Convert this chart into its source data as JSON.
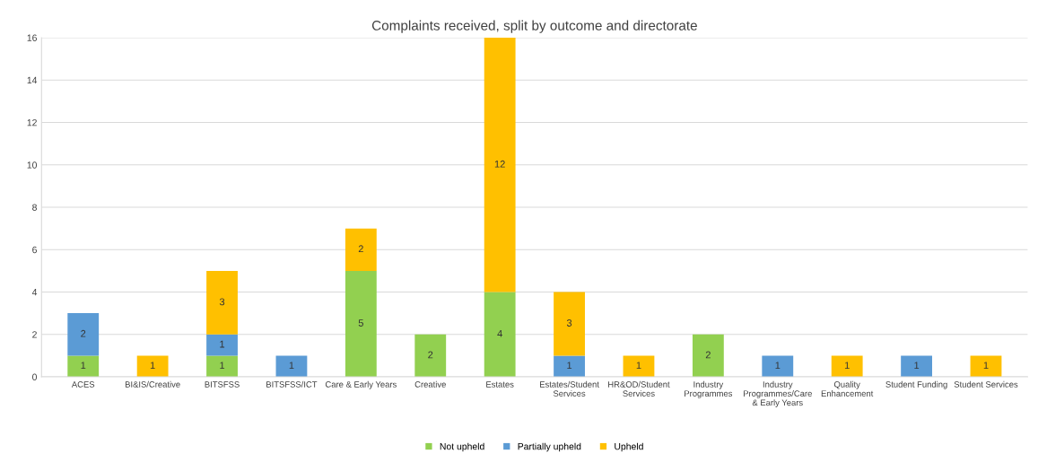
{
  "chart_data": {
    "type": "bar",
    "title": "Complaints received, split by outcome and directorate",
    "stacked": true,
    "data_labels": true,
    "categories": [
      "ACES",
      "BI&IS/Creative",
      "BITSFSS",
      "BITSFSS/ICT",
      "Care & Early Years",
      "Creative",
      "Estates",
      "Estates/Student\nServices",
      "HR&OD/Student\nServices",
      "Industry\nProgrammes",
      "Industry\nProgrammes/Care\n& Early Years",
      "Quality\nEnhancement",
      "Student Funding",
      "Student Services"
    ],
    "series": [
      {
        "name": "Not upheld",
        "color": "#92d050",
        "values": [
          1,
          null,
          1,
          null,
          5,
          2,
          4,
          null,
          null,
          2,
          null,
          null,
          null,
          null
        ]
      },
      {
        "name": "Partially upheld",
        "color": "#5b9bd5",
        "values": [
          2,
          null,
          1,
          1,
          null,
          null,
          null,
          1,
          null,
          null,
          1,
          null,
          1,
          null
        ]
      },
      {
        "name": "Upheld",
        "color": "#ffc000",
        "values": [
          null,
          1,
          3,
          null,
          2,
          null,
          12,
          3,
          1,
          null,
          null,
          1,
          null,
          1
        ]
      }
    ],
    "ylim": [
      0,
      16
    ],
    "yticks": [
      0,
      2,
      4,
      6,
      8,
      10,
      12,
      14,
      16
    ],
    "grid": "y",
    "legend": "bottom"
  }
}
